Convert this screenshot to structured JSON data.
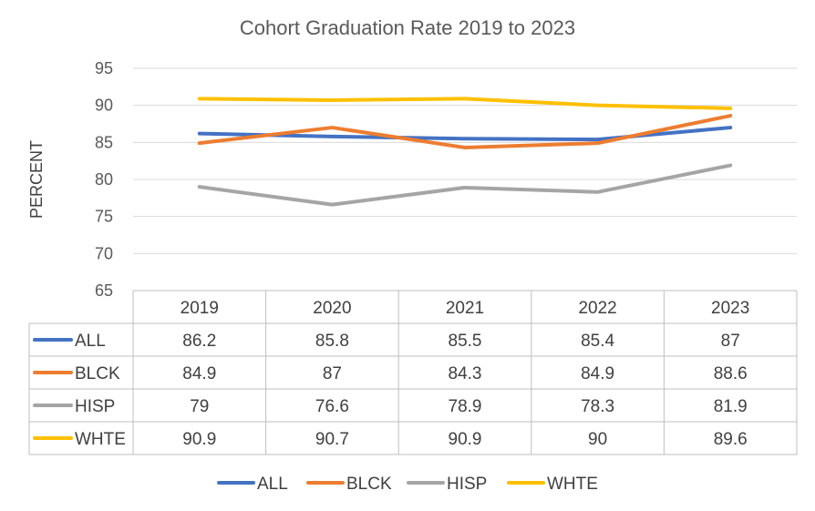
{
  "chart_data": {
    "type": "line",
    "title": "Cohort Graduation Rate 2019 to 2023",
    "ylabel": "PERCENT",
    "xlabel": "",
    "categories": [
      "2019",
      "2020",
      "2021",
      "2022",
      "2023"
    ],
    "ylim": [
      65,
      95
    ],
    "yticks": [
      65,
      70,
      75,
      80,
      85,
      90,
      95
    ],
    "grid": true,
    "legend_position": "bottom",
    "data_table": true,
    "series": [
      {
        "name": "ALL",
        "color": "#4472C4",
        "values": [
          86.2,
          85.8,
          85.5,
          85.4,
          87
        ]
      },
      {
        "name": "BLCK",
        "color": "#ED7D31",
        "values": [
          84.9,
          87,
          84.3,
          84.9,
          88.6
        ]
      },
      {
        "name": "HISP",
        "color": "#A5A5A5",
        "values": [
          79,
          76.6,
          78.9,
          78.3,
          81.9
        ]
      },
      {
        "name": "WHTE",
        "color": "#FFC000",
        "values": [
          90.9,
          90.7,
          90.9,
          90,
          89.6
        ]
      }
    ]
  }
}
